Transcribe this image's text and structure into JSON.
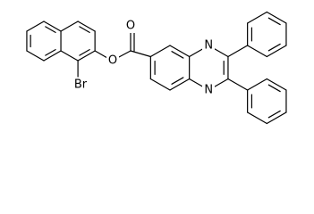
{
  "atoms": {
    "carbonyl_oxygen": "O",
    "ester_oxygen": "O",
    "bromine": "Br",
    "nitrogen_top": "N",
    "nitrogen_bottom": "N"
  }
}
